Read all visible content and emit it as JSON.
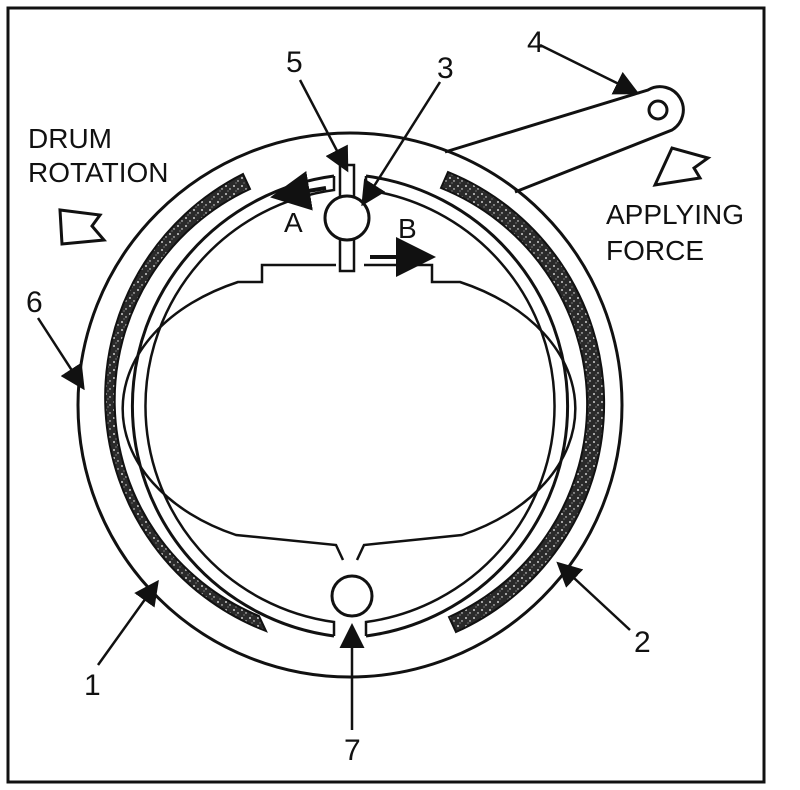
{
  "labels": {
    "drum_rotation_line1": "DRUM",
    "drum_rotation_line2": "ROTATION",
    "applying_force_line1": "APPLYING",
    "applying_force_line2": "FORCE",
    "direction_a": "A",
    "direction_b": "B"
  },
  "callouts": {
    "c1": "1",
    "c2": "2",
    "c3": "3",
    "c4": "4",
    "c5": "5",
    "c6": "6",
    "c7": "7"
  },
  "colors": {
    "ink": "#111111",
    "lining": "#2a2a2a",
    "background": "#ffffff"
  }
}
